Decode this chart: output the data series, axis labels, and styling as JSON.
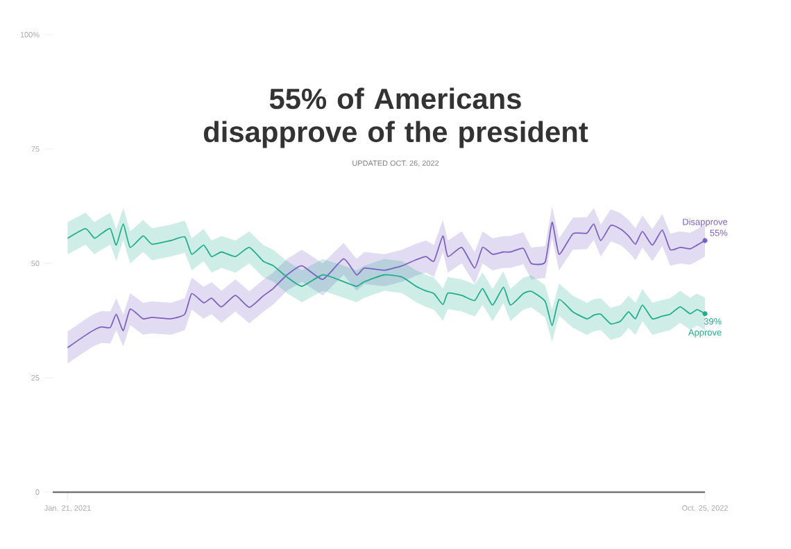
{
  "chart_data": {
    "type": "line",
    "title": "55% of Americans disapprove of the president",
    "subtitle": "UPDATED OCT. 26, 2022",
    "x": [
      "2021-01-21",
      "2021-02-08",
      "2021-02-17",
      "2021-02-24",
      "2021-03-05",
      "2021-03-11",
      "2021-03-18",
      "2021-03-25",
      "2021-04-07",
      "2021-04-16",
      "2021-05-05",
      "2021-05-19",
      "2021-05-26",
      "2021-06-07",
      "2021-06-15",
      "2021-06-25",
      "2021-07-09",
      "2021-07-23",
      "2021-08-06",
      "2021-08-16",
      "2021-08-30",
      "2021-09-14",
      "2021-10-05",
      "2021-10-26",
      "2021-11-08",
      "2021-11-16",
      "2021-12-06",
      "2021-12-24",
      "2022-01-07",
      "2022-01-17",
      "2022-01-25",
      "2022-02-03",
      "2022-02-08",
      "2022-02-22",
      "2022-03-07",
      "2022-03-15",
      "2022-03-25",
      "2022-04-05",
      "2022-04-12",
      "2022-04-25",
      "2022-05-03",
      "2022-05-17",
      "2022-05-24",
      "2022-05-31",
      "2022-06-14",
      "2022-06-28",
      "2022-07-05",
      "2022-07-12",
      "2022-07-22",
      "2022-08-01",
      "2022-08-09",
      "2022-08-16",
      "2022-08-23",
      "2022-09-02",
      "2022-09-12",
      "2022-09-20",
      "2022-09-30",
      "2022-10-10",
      "2022-10-17",
      "2022-10-25"
    ],
    "series": [
      {
        "name": "Disapprove",
        "color": "#7b5fc4",
        "values": [
          31.6,
          34.3,
          35.5,
          36.1,
          36,
          38.9,
          35.3,
          40,
          37.9,
          38.2,
          37.9,
          38.9,
          43.4,
          41.4,
          42.4,
          40.5,
          43,
          40.4,
          42.9,
          44.5,
          47.5,
          49.5,
          46.5,
          51,
          47.5,
          49,
          48.5,
          49.5,
          50.8,
          51.5,
          50.5,
          56,
          51.5,
          53.5,
          49,
          53.5,
          52,
          52.5,
          52.5,
          53.3,
          50,
          50.3,
          59,
          52,
          56.5,
          56.6,
          58.6,
          55,
          58.3,
          57.5,
          56,
          54.2,
          57,
          54,
          57.3,
          53,
          53.5,
          53.2,
          54,
          55
        ],
        "lower": [
          28.1,
          30.8,
          32,
          32.6,
          32.5,
          35.4,
          31.8,
          36.5,
          34.4,
          34.7,
          34.4,
          35.4,
          39.9,
          37.9,
          38.9,
          37,
          39.5,
          36.9,
          39.4,
          41,
          44,
          46,
          43,
          47.5,
          44,
          45.5,
          45,
          46,
          47.3,
          48,
          47,
          52.5,
          48,
          50,
          45.5,
          50,
          48.5,
          49,
          49,
          49.8,
          46.5,
          46.8,
          55.5,
          48.5,
          53,
          53.1,
          55.1,
          51.5,
          54.8,
          54,
          52.5,
          50.7,
          53.5,
          50.5,
          53.8,
          49.5,
          50,
          49.7,
          50.5,
          51.5
        ],
        "upper": [
          35.1,
          37.8,
          39,
          39.6,
          39.5,
          42.4,
          38.8,
          43.5,
          41.4,
          41.7,
          41.4,
          42.4,
          46.9,
          44.9,
          45.9,
          44,
          46.5,
          43.9,
          46.4,
          48,
          51,
          53,
          50,
          54.5,
          51,
          52.5,
          52,
          53,
          54.3,
          55,
          54,
          59.5,
          55,
          57,
          52.5,
          57,
          55.5,
          56,
          56,
          56.8,
          53.5,
          53.8,
          62.5,
          55.5,
          60,
          60.1,
          62.1,
          58.5,
          61.8,
          61,
          59.5,
          57.7,
          60.5,
          57.5,
          60.8,
          56.5,
          57,
          56.7,
          57.5,
          58.5
        ]
      },
      {
        "name": "Approve",
        "color": "#1fae8c",
        "values": [
          55.5,
          57.6,
          55.5,
          56.5,
          57.6,
          54,
          58.6,
          53.5,
          56,
          54.2,
          55,
          55.8,
          52,
          54,
          51.5,
          52.5,
          51.5,
          53.5,
          50.5,
          49.5,
          47,
          45,
          47.5,
          46,
          45,
          46,
          47.5,
          47,
          45,
          44,
          43.4,
          41,
          43.5,
          43,
          41.9,
          44.5,
          40.9,
          44.8,
          40.9,
          43.4,
          43.9,
          41.7,
          36.4,
          42.1,
          39.4,
          37.9,
          38.7,
          38.9,
          36.8,
          37.4,
          39.4,
          37.9,
          40.9,
          37.9,
          38.5,
          38.9,
          40.5,
          39,
          39.9,
          39
        ],
        "lower": [
          52,
          54.1,
          52,
          53,
          54.1,
          50.5,
          55.1,
          50,
          52.5,
          50.7,
          51.5,
          52.3,
          48.5,
          50.5,
          48,
          49,
          48,
          50,
          47,
          46,
          43.5,
          41.5,
          44,
          42.5,
          41.5,
          42.5,
          44,
          43.5,
          41.5,
          40.5,
          39.9,
          37.5,
          40,
          39.5,
          38.4,
          41,
          37.4,
          41.3,
          37.4,
          39.9,
          40.4,
          38.2,
          32.9,
          38.6,
          35.9,
          34.4,
          35.2,
          35.4,
          33.3,
          33.9,
          35.9,
          34.4,
          37.4,
          34.4,
          35,
          35.4,
          37,
          35.5,
          36.4,
          35.5
        ],
        "upper": [
          59,
          61.1,
          59,
          60,
          61.1,
          57.5,
          62.1,
          57,
          59.5,
          57.7,
          58.5,
          59.3,
          55.5,
          57.5,
          55,
          56,
          55,
          57,
          54,
          53,
          50.5,
          48.5,
          51,
          49.5,
          48.5,
          49.5,
          51,
          50.5,
          48.5,
          47.5,
          46.9,
          44.5,
          47,
          46.5,
          45.4,
          48,
          44.4,
          48.3,
          44.4,
          46.9,
          47.4,
          45.2,
          39.9,
          45.6,
          42.9,
          41.4,
          42.2,
          42.4,
          40.3,
          40.9,
          42.9,
          41.4,
          44.4,
          41.4,
          42,
          42.4,
          44,
          42.5,
          43.4,
          42.5
        ]
      }
    ],
    "annotations": [
      {
        "text": "55%",
        "x": "2022-10-25",
        "y": 55
      },
      {
        "text": "39%",
        "x": "2022-10-25",
        "y": 39
      }
    ],
    "xlim": [
      "2021-01-06",
      "2022-10-25"
    ],
    "xticks": [
      {
        "value": "2021-01-21",
        "label": "Jan. 21, 2021"
      },
      {
        "value": "2022-10-25",
        "label": "Oct. 25, 2022"
      }
    ],
    "ylim": [
      0,
      100
    ],
    "yticks": [
      0,
      25,
      50,
      75,
      {
        "value": 100,
        "label": "100%"
      }
    ],
    "grid": false,
    "legend": false
  }
}
